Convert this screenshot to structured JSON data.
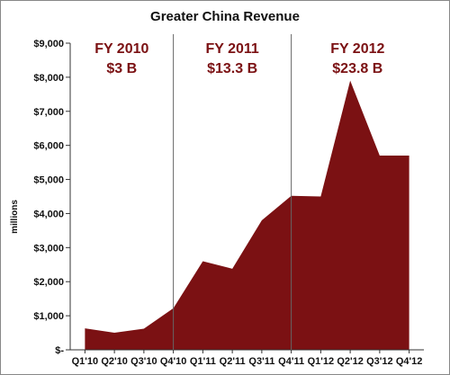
{
  "chart_data": {
    "type": "area",
    "title": "Greater China Revenue",
    "ylabel": "millions",
    "xlabel": "",
    "categories": [
      "Q1'10",
      "Q2'10",
      "Q3'10",
      "Q4'10",
      "Q1'11",
      "Q2'11",
      "Q3'11",
      "Q4'11",
      "Q1'12",
      "Q2'12",
      "Q3'12",
      "Q4'12"
    ],
    "series": [
      {
        "values": [
          630,
          500,
          620,
          1220,
          2600,
          2380,
          3800,
          4520,
          4500,
          7900,
          5700,
          5700
        ]
      }
    ],
    "ylim": [
      0,
      9000
    ],
    "yticks": [
      0,
      1000,
      2000,
      3000,
      4000,
      5000,
      6000,
      7000,
      8000,
      9000
    ],
    "ytick_labels": [
      "$-",
      "$1,000",
      "$2,000",
      "$3,000",
      "$4,000",
      "$5,000",
      "$6,000",
      "$7,000",
      "$8,000",
      "$9,000"
    ],
    "grid": false,
    "fill_color": "#7b1113",
    "annotations": [
      {
        "line1": "FY 2010",
        "line2": "$3 B",
        "color": "#7b1113"
      },
      {
        "line1": "FY 2011",
        "line2": "$13.3 B",
        "color": "#7b1113"
      },
      {
        "line1": "FY 2012",
        "line2": "$23.8 B",
        "color": "#7b1113"
      }
    ],
    "dividers_after_categories": [
      "Q4'10",
      "Q4'11"
    ]
  }
}
